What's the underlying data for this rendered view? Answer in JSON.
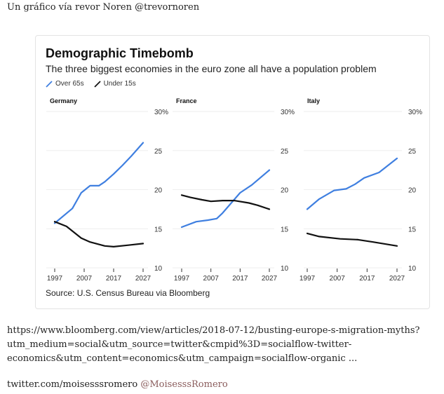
{
  "intro": "Un gráfico vía revor Noren @trevornoren",
  "chart": {
    "title": "Demographic Timebomb",
    "subtitle": "The three biggest economies in the euro zone all have a population problem",
    "legend": [
      {
        "label": "Over 65s",
        "color": "#3f7fe0"
      },
      {
        "label": "Under 15s",
        "color": "#111111"
      }
    ],
    "source": "Source: U.S. Census Bureau via Bloomberg"
  },
  "chart_data": {
    "type": "line",
    "title": "Demographic Timebomb",
    "subtitle": "The three biggest economies in the euro zone all have a population problem",
    "xlim": [
      1997,
      2027
    ],
    "ylim": [
      10,
      30
    ],
    "x_ticks": [
      "1997",
      "2007",
      "2017",
      "2027"
    ],
    "y_ticks": [
      "10",
      "15",
      "20",
      "25",
      "30%"
    ],
    "grid": true,
    "legend_position": "top-left",
    "panels": [
      {
        "name": "Germany",
        "series": [
          {
            "name": "Over 65s",
            "x": [
              1997,
              2003,
              2006,
              2009,
              2012,
              2014,
              2017,
              2020,
              2023,
              2027
            ],
            "y": [
              15.7,
              17.6,
              19.6,
              20.5,
              20.5,
              21.0,
              22.0,
              23.1,
              24.3,
              26.0
            ]
          },
          {
            "name": "Under 15s",
            "x": [
              1997,
              2001,
              2006,
              2009,
              2014,
              2017,
              2022,
              2027
            ],
            "y": [
              15.9,
              15.3,
              13.8,
              13.3,
              12.8,
              12.7,
              12.9,
              13.1
            ]
          }
        ]
      },
      {
        "name": "France",
        "series": [
          {
            "name": "Over 65s",
            "x": [
              1997,
              2002,
              2006,
              2009,
              2011,
              2017,
              2021,
              2027
            ],
            "y": [
              15.2,
              15.9,
              16.1,
              16.3,
              17.0,
              19.6,
              20.6,
              22.5
            ]
          },
          {
            "name": "Under 15s",
            "x": [
              1997,
              2000,
              2004,
              2007,
              2011,
              2015,
              2020,
              2023,
              2027
            ],
            "y": [
              19.3,
              19.0,
              18.7,
              18.5,
              18.6,
              18.6,
              18.3,
              18.0,
              17.5
            ]
          }
        ]
      },
      {
        "name": "Italy",
        "series": [
          {
            "name": "Over 65s",
            "x": [
              1997,
              2001,
              2006,
              2010,
              2013,
              2016,
              2021,
              2027
            ],
            "y": [
              17.5,
              18.8,
              19.9,
              20.1,
              20.7,
              21.5,
              22.2,
              24.0
            ]
          },
          {
            "name": "Under 15s",
            "x": [
              1997,
              2001,
              2008,
              2014,
              2019,
              2027
            ],
            "y": [
              14.4,
              14.0,
              13.7,
              13.6,
              13.3,
              12.8
            ]
          }
        ]
      }
    ]
  },
  "footer": {
    "url_lines": [
      "https://www.bloomberg.com/view/articles/2018-07-12/busting-europe-s-migration-myths?",
      "utm_medium=social&utm_source=twitter&cmpid%3D=socialflow-twitter-",
      "economics&utm_content=economics&utm_campaign=socialflow-organic ..."
    ],
    "twitter": "twitter.com/moisesssromero",
    "handle": "@MoisesssRomero",
    "handle_color": "#8a5c5c"
  }
}
